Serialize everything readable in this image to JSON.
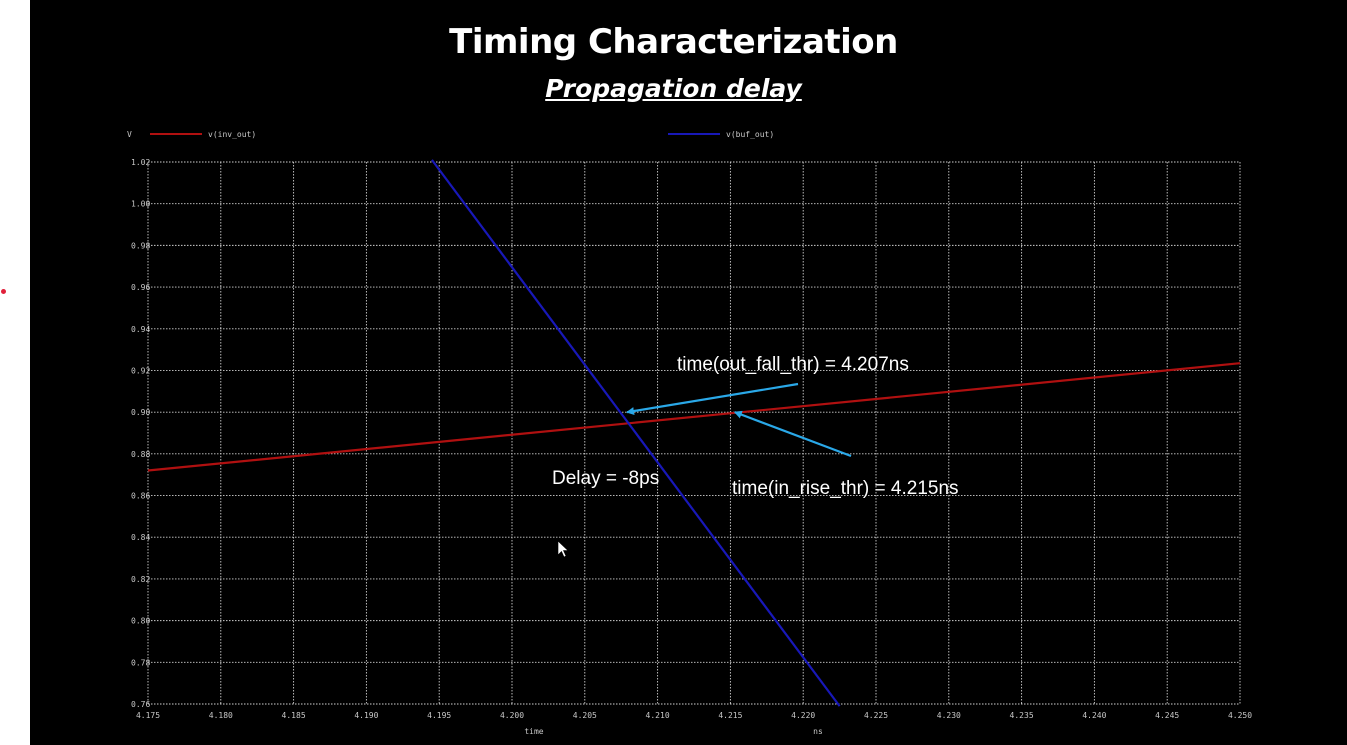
{
  "slide": {
    "title": "Timing Characterization",
    "subtitle": "Propagation delay",
    "background": "#000000"
  },
  "chart_data": {
    "type": "line",
    "y_unit": "V",
    "x_unit_labels": [
      "time",
      "ns"
    ],
    "xlim": [
      4.175,
      4.25
    ],
    "ylim": [
      0.76,
      1.02
    ],
    "x_ticks": [
      "4.175",
      "4.180",
      "4.185",
      "4.190",
      "4.195",
      "4.200",
      "4.205",
      "4.210",
      "4.215",
      "4.220",
      "4.225",
      "4.230",
      "4.235",
      "4.240",
      "4.245",
      "4.250"
    ],
    "y_ticks": [
      "0.76",
      "0.78",
      "0.80",
      "0.82",
      "0.84",
      "0.86",
      "0.88",
      "0.90",
      "0.92",
      "0.94",
      "0.96",
      "0.98",
      "1.00",
      "1.02"
    ],
    "grid": true,
    "legend_placement": "top",
    "series": [
      {
        "name": "v(inv_out)",
        "color": "#b01010",
        "x": [
          4.175,
          4.25
        ],
        "y": [
          0.872,
          0.9235
        ]
      },
      {
        "name": "v(buf_out)",
        "color": "#1818b8",
        "x": [
          4.1945,
          4.2225
        ],
        "y": [
          1.021,
          0.759
        ]
      }
    ],
    "annotations": [
      {
        "text": "time(out_fall_thr) = 4.207ns",
        "arrow_color": "#2aa8e8",
        "points_to": {
          "x": 4.2079,
          "y": 0.9
        }
      },
      {
        "text": "time(in_rise_thr) = 4.215ns",
        "arrow_color": "#2aa8e8",
        "points_to": {
          "x": 4.2153,
          "y": 0.9
        }
      },
      {
        "text": "Delay = -8ps"
      }
    ]
  }
}
